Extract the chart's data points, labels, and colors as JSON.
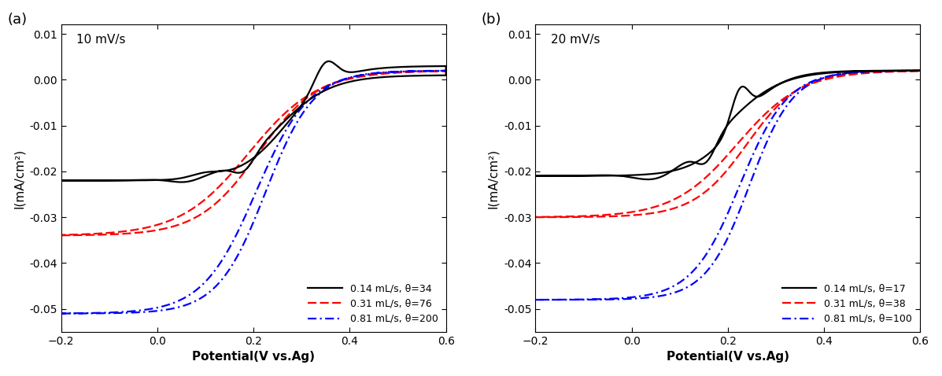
{
  "panel_a": {
    "title": "10 mV/s",
    "xlabel": "Potential(V vs.Ag)",
    "ylabel": "I(mA/cm²)",
    "xlim": [
      -0.2,
      0.6
    ],
    "ylim": [
      -0.055,
      0.012
    ],
    "xticks": [
      -0.2,
      0.0,
      0.2,
      0.4,
      0.6
    ],
    "yticks": [
      -0.05,
      -0.04,
      -0.03,
      -0.02,
      -0.01,
      0.0,
      0.01
    ],
    "panel_label": "(a)",
    "legend": [
      {
        "label": "0.14 mL/s, θ=34",
        "color": "black",
        "linestyle": "solid"
      },
      {
        "label": "0.31 mL/s, θ=76",
        "color": "red",
        "linestyle": "dashed"
      },
      {
        "label": "0.81 mL/s, θ=200",
        "color": "blue",
        "linestyle": "dashdot"
      }
    ]
  },
  "panel_b": {
    "title": "20 mV/s",
    "xlabel": "Potential(V vs.Ag)",
    "ylabel": "I(mA/cm²)",
    "xlim": [
      -0.2,
      0.6
    ],
    "ylim": [
      -0.055,
      0.012
    ],
    "xticks": [
      -0.2,
      0.0,
      0.2,
      0.4,
      0.6
    ],
    "yticks": [
      -0.05,
      -0.04,
      -0.03,
      -0.02,
      -0.01,
      0.0,
      0.01
    ],
    "panel_label": "(b)",
    "legend": [
      {
        "label": "0.14 mL/s, θ=17",
        "color": "black",
        "linestyle": "solid"
      },
      {
        "label": "0.31 mL/s, θ=38",
        "color": "red",
        "linestyle": "dashed"
      },
      {
        "label": "0.81 mL/s, θ=100",
        "color": "blue",
        "linestyle": "dashdot"
      }
    ]
  },
  "background_color": "white",
  "linewidth": 1.6
}
